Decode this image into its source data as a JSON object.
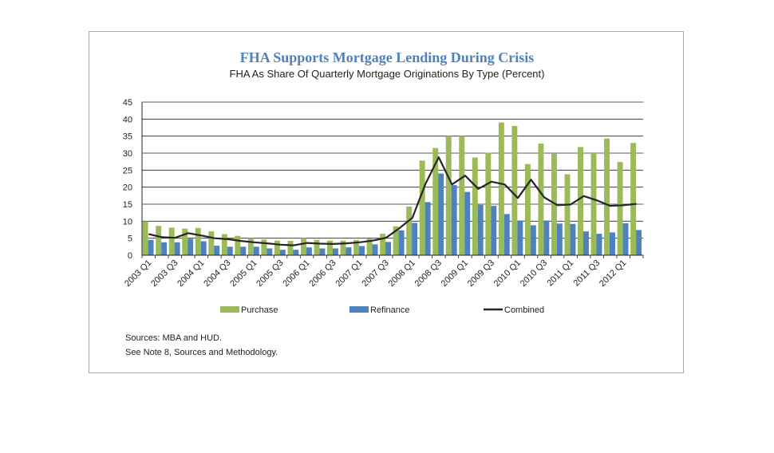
{
  "chart_data": {
    "type": "bar",
    "title": "FHA Supports Mortgage Lending During Crisis",
    "subtitle": "FHA As Share Of Quarterly Mortgage Originations By Type (Percent)",
    "xlabel": "",
    "ylabel": "",
    "ylim": [
      0,
      45
    ],
    "yticks": [
      0,
      5,
      10,
      15,
      20,
      25,
      30,
      35,
      40,
      45
    ],
    "grid": true,
    "legend_position": "bottom",
    "categories": [
      "2003 Q1",
      "2003 Q2",
      "2003 Q3",
      "2003 Q4",
      "2004 Q1",
      "2004 Q2",
      "2004 Q3",
      "2004 Q4",
      "2005 Q1",
      "2005 Q2",
      "2005 Q3",
      "2005 Q4",
      "2006 Q1",
      "2006 Q2",
      "2006 Q3",
      "2006 Q4",
      "2007 Q1",
      "2007 Q2",
      "2007 Q3",
      "2007 Q4",
      "2008 Q1",
      "2008 Q2",
      "2008 Q3",
      "2008 Q4",
      "2009 Q1",
      "2009 Q2",
      "2009 Q3",
      "2009 Q4",
      "2010 Q1",
      "2010 Q2",
      "2010 Q3",
      "2010 Q4",
      "2011 Q1",
      "2011 Q2",
      "2011 Q3",
      "2011 Q4",
      "2012 Q1",
      "2012 Q2"
    ],
    "tick_labels": [
      "2003 Q1",
      "",
      "2003 Q3",
      "",
      "2004 Q1",
      "",
      "2004 Q3",
      "",
      "2005 Q1",
      "",
      "2005 Q3",
      "",
      "2006 Q1",
      "",
      "2006 Q3",
      "",
      "2007 Q1",
      "",
      "2007 Q3",
      "",
      "2008 Q1",
      "",
      "2008 Q3",
      "",
      "2009 Q1",
      "",
      "2009 Q3",
      "",
      "2010 Q1",
      "",
      "2010 Q3",
      "",
      "2011 Q1",
      "",
      "2011 Q3",
      "",
      "2012 Q1",
      ""
    ],
    "series": [
      {
        "name": "Purchase",
        "kind": "bar",
        "color": "#9bbb59",
        "values": [
          10,
          8.6,
          8.1,
          7.8,
          8,
          7,
          6.2,
          5.7,
          5,
          4.6,
          4.3,
          4.2,
          5,
          4.5,
          4.3,
          4.3,
          4.5,
          4.8,
          6.3,
          8.5,
          14.3,
          27.8,
          31.5,
          35,
          35,
          28.7,
          30.1,
          39,
          38,
          26.8,
          32.8,
          29.8,
          23.8,
          31.8,
          30,
          34.3,
          27.4,
          33
        ]
      },
      {
        "name": "Refinance",
        "kind": "bar",
        "color": "#4f81bd",
        "values": [
          4.5,
          3.8,
          3.8,
          4.8,
          4.1,
          2.8,
          2.5,
          2.5,
          2.5,
          2,
          1.6,
          1.6,
          2.3,
          2,
          2,
          2.3,
          2.7,
          3.2,
          3.9,
          7.3,
          9.5,
          15.6,
          24,
          20.6,
          18.6,
          14.8,
          14.5,
          12.1,
          10.2,
          8.8,
          10.2,
          9.3,
          9.2,
          7,
          6.3,
          6.7,
          9.4,
          7.4
        ]
      },
      {
        "name": "Combined",
        "kind": "line",
        "color": "#262626",
        "values": [
          6.2,
          5.3,
          5.1,
          6.5,
          5.8,
          5,
          4.7,
          4.2,
          3.8,
          3.5,
          3.1,
          2.9,
          3.6,
          3.4,
          3.3,
          3.5,
          3.8,
          4.3,
          5.1,
          7.9,
          11,
          21,
          28.8,
          20.8,
          23.4,
          19.5,
          21.6,
          20.8,
          16.8,
          22.2,
          17,
          14.7,
          14.9,
          17.4,
          16.1,
          14.5,
          14.7,
          15.1
        ]
      }
    ]
  },
  "sources": {
    "line1": "Sources:  MBA and HUD.",
    "line2": "See Note 8, Sources and Methodology."
  }
}
